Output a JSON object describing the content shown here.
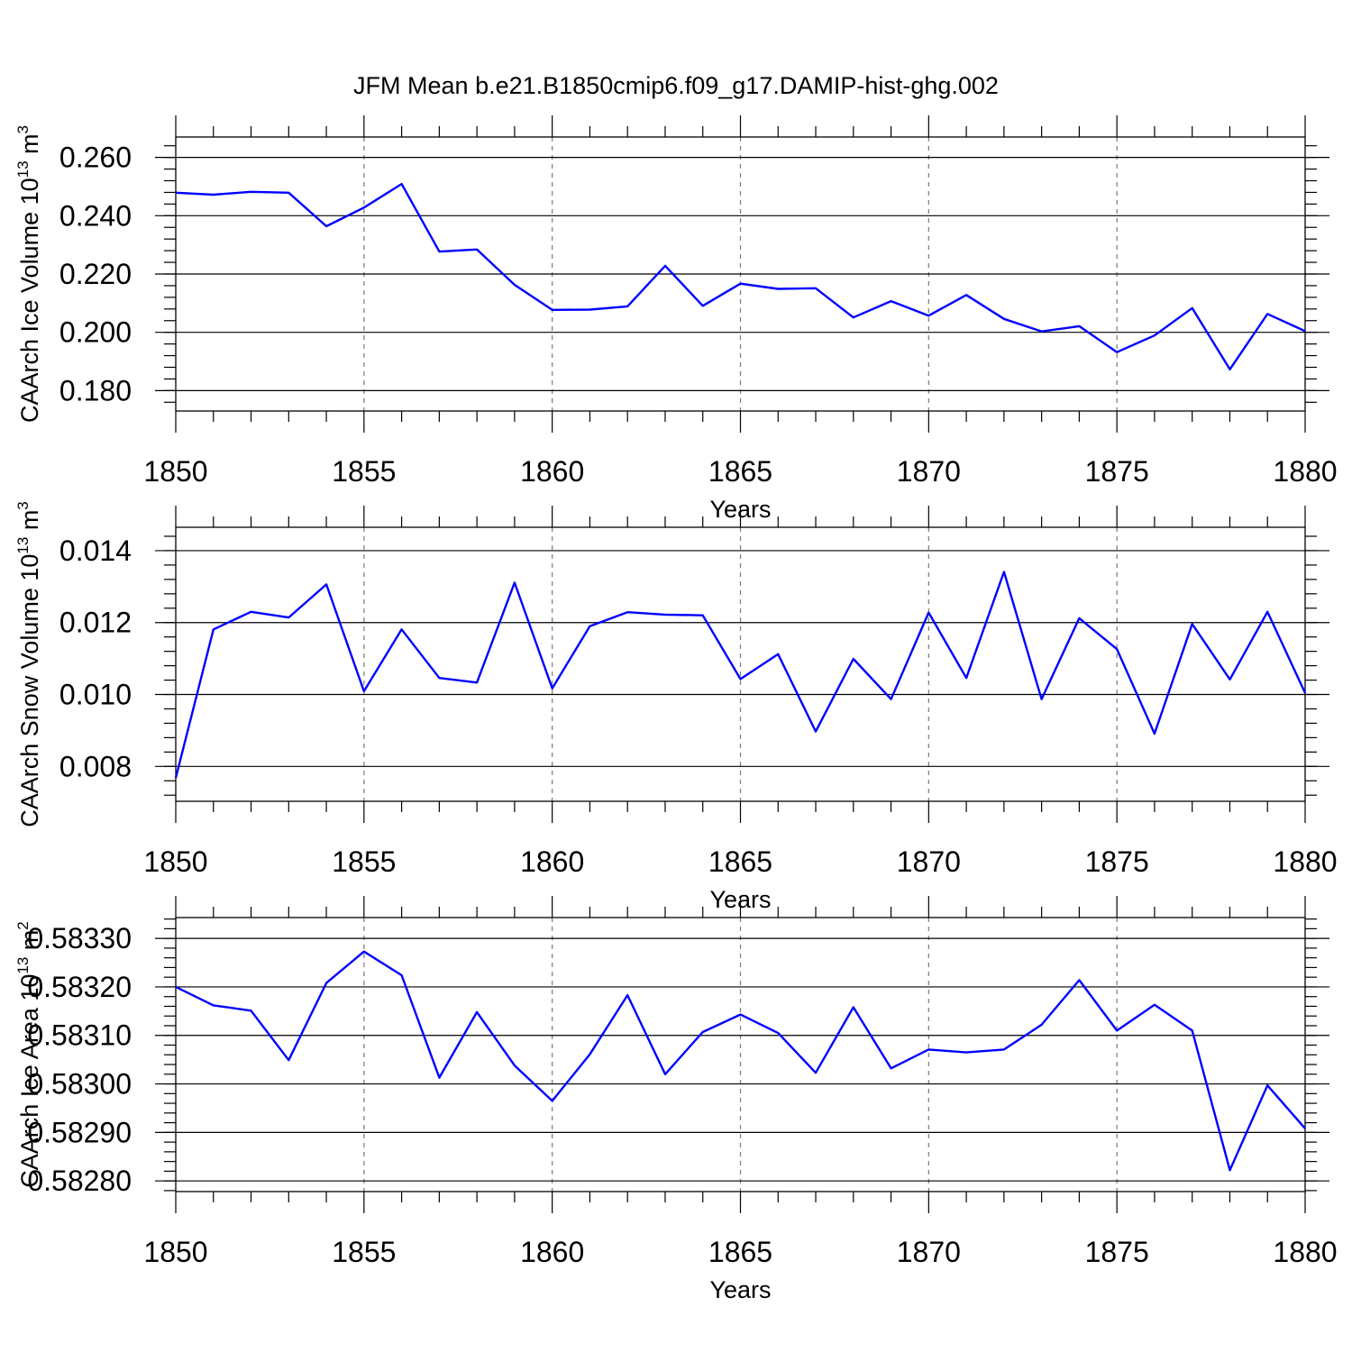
{
  "figure": {
    "title": "JFM Mean b.e21.B1850cmip6.f09_g17.DAMIP-hist-ghg.002",
    "line_color": "#0000ff",
    "grid_color": "#7a7a7a"
  },
  "chart_data": [
    {
      "type": "line",
      "xlabel": "Years",
      "ylabel": "CAArch Ice Volume 10",
      "ylabel_exp": "13",
      "ylabel_unit": "m",
      "ylabel_unit_exp": "3",
      "xlim": [
        1850,
        1880
      ],
      "ylim": [
        0.173,
        0.267
      ],
      "xticks": [
        1850,
        1855,
        1860,
        1865,
        1870,
        1875,
        1880
      ],
      "yticks": [
        0.18,
        0.2,
        0.22,
        0.24,
        0.26
      ],
      "ytick_labels": [
        "0.180",
        "0.200",
        "0.220",
        "0.240",
        "0.260"
      ],
      "grid": "vertical dashed at major x ticks",
      "x": [
        1850,
        1851,
        1852,
        1853,
        1854,
        1855,
        1856,
        1857,
        1858,
        1859,
        1860,
        1861,
        1862,
        1863,
        1864,
        1865,
        1866,
        1867,
        1868,
        1869,
        1870,
        1871,
        1872,
        1873,
        1874,
        1875,
        1876,
        1877,
        1878,
        1879,
        1880
      ],
      "values": [
        0.2479,
        0.2472,
        0.2482,
        0.2479,
        0.2364,
        0.2428,
        0.2509,
        0.2277,
        0.2284,
        0.2163,
        0.2077,
        0.2078,
        0.2089,
        0.2228,
        0.2091,
        0.2167,
        0.2149,
        0.2151,
        0.2051,
        0.2107,
        0.2057,
        0.2128,
        0.2046,
        0.2003,
        0.2021,
        0.1932,
        0.1989,
        0.2083,
        0.1873,
        0.2063,
        0.2004
      ]
    },
    {
      "type": "line",
      "xlabel": "Years",
      "ylabel": "CAArch Snow Volume 10",
      "ylabel_exp": "13",
      "ylabel_unit": "m",
      "ylabel_unit_exp": "3",
      "xlim": [
        1850,
        1880
      ],
      "ylim": [
        0.00703,
        0.01465
      ],
      "xticks": [
        1850,
        1855,
        1860,
        1865,
        1870,
        1875,
        1880
      ],
      "yticks": [
        0.008,
        0.01,
        0.012,
        0.014
      ],
      "ytick_labels": [
        "0.008",
        "0.010",
        "0.012",
        "0.014"
      ],
      "grid": "vertical dashed at major x ticks",
      "x": [
        1850,
        1851,
        1852,
        1853,
        1854,
        1855,
        1856,
        1857,
        1858,
        1859,
        1860,
        1861,
        1862,
        1863,
        1864,
        1865,
        1866,
        1867,
        1868,
        1869,
        1870,
        1871,
        1872,
        1873,
        1874,
        1875,
        1876,
        1877,
        1878,
        1879,
        1880
      ],
      "values": [
        0.00768,
        0.01181,
        0.0123,
        0.01214,
        0.01306,
        0.01009,
        0.01181,
        0.01046,
        0.01033,
        0.01311,
        0.01017,
        0.0119,
        0.01229,
        0.01222,
        0.0122,
        0.01043,
        0.01112,
        0.00897,
        0.01099,
        0.00987,
        0.01228,
        0.01046,
        0.01341,
        0.00987,
        0.01212,
        0.01126,
        0.00891,
        0.01196,
        0.01042,
        0.0123,
        0.01004
      ]
    },
    {
      "type": "line",
      "xlabel": "Years",
      "ylabel": "CAArch Ice Area 10",
      "ylabel_exp": "13",
      "ylabel_unit": "m",
      "ylabel_unit_exp": "2",
      "xlim": [
        1850,
        1880
      ],
      "ylim": [
        0.582778,
        0.583343
      ],
      "xticks": [
        1850,
        1855,
        1860,
        1865,
        1870,
        1875,
        1880
      ],
      "yticks": [
        0.5828,
        0.5829,
        0.583,
        0.5831,
        0.5832,
        0.5833
      ],
      "ytick_labels": [
        "0.58280",
        "0.58290",
        "0.58300",
        "0.58310",
        "0.58320",
        "0.58330"
      ],
      "grid": "vertical dashed at major x ticks",
      "x": [
        1850,
        1851,
        1852,
        1853,
        1854,
        1855,
        1856,
        1857,
        1858,
        1859,
        1860,
        1861,
        1862,
        1863,
        1864,
        1865,
        1866,
        1867,
        1868,
        1869,
        1870,
        1871,
        1872,
        1873,
        1874,
        1875,
        1876,
        1877,
        1878,
        1879,
        1880
      ],
      "values": [
        0.5832,
        0.583162,
        0.583151,
        0.583049,
        0.583208,
        0.583273,
        0.583224,
        0.583013,
        0.583148,
        0.583038,
        0.582965,
        0.583061,
        0.583183,
        0.58302,
        0.583107,
        0.583143,
        0.583105,
        0.583023,
        0.583158,
        0.583032,
        0.583071,
        0.583065,
        0.583071,
        0.583122,
        0.583214,
        0.58311,
        0.583163,
        0.58311,
        0.582822,
        0.582997,
        0.582908
      ]
    }
  ]
}
